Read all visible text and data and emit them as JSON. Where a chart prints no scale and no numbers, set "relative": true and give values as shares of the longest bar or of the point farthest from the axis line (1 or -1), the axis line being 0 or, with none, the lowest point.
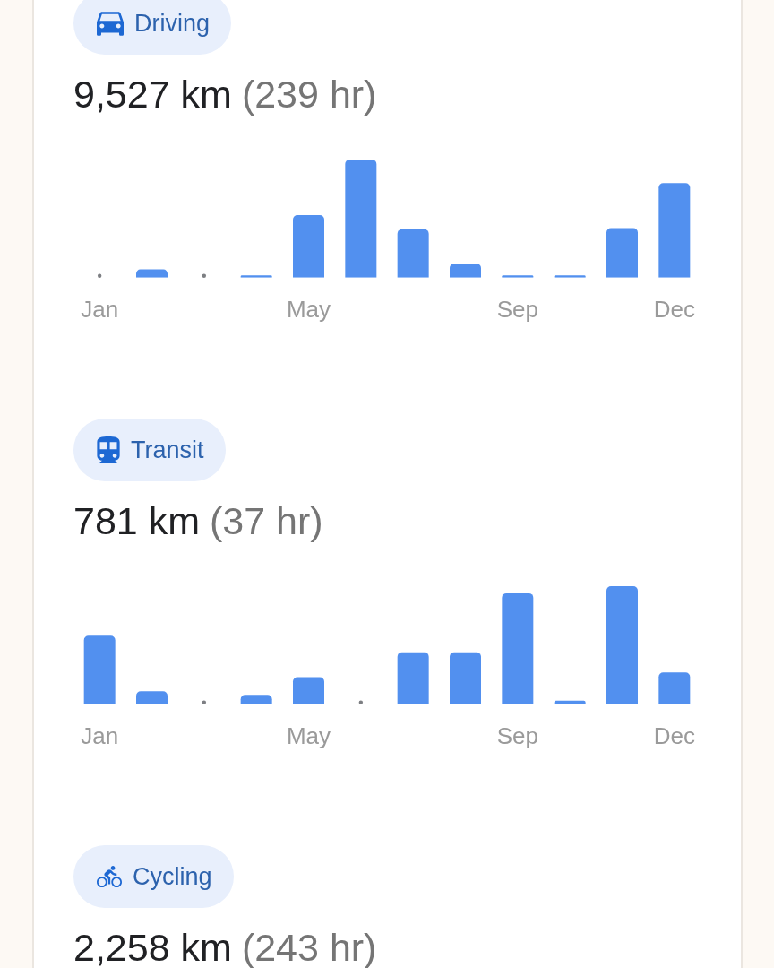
{
  "chart_data": [
    {
      "type": "bar",
      "title": "Driving",
      "subtitle": "9,527 km",
      "annotations": [
        "(239 hr)"
      ],
      "categories": [
        "Jan",
        null,
        null,
        null,
        "May",
        null,
        null,
        null,
        "Sep",
        null,
        null,
        "Dec"
      ],
      "values": [
        0,
        0.07,
        0,
        0.02,
        0.53,
        1,
        0.41,
        0.12,
        0.02,
        0.02,
        0.42,
        0.8
      ],
      "color": "#5290ef",
      "relative": true
    },
    {
      "type": "bar",
      "title": "Transit",
      "subtitle": "781 km",
      "annotations": [
        "(37 hr)"
      ],
      "categories": [
        "Jan",
        null,
        null,
        null,
        "May",
        null,
        null,
        null,
        "Sep",
        null,
        null,
        "Dec"
      ],
      "values": [
        0.58,
        0.11,
        0,
        0.08,
        0.23,
        0,
        0.44,
        0.44,
        0.94,
        0.03,
        1,
        0.27
      ],
      "color": "#5290ef",
      "relative": true
    },
    {
      "type": "other",
      "title": "Cycling",
      "subtitle": "2,258 km",
      "annotations": [
        "(243 hr)"
      ]
    }
  ]
}
